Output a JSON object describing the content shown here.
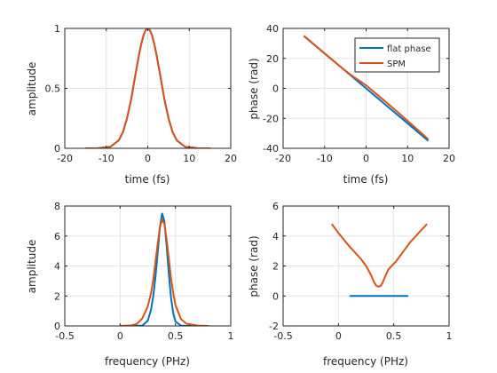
{
  "figure": {
    "colors": {
      "flat": "#0072BD",
      "spm": "#D95319",
      "grid": "#e3e3e3",
      "axis": "#262626"
    }
  },
  "chart_data": [
    {
      "type": "line",
      "xlabel": "time (fs)",
      "ylabel": "amplitude",
      "xlim": [
        -20,
        20
      ],
      "ylim": [
        0,
        1
      ],
      "xticks": [
        "-20",
        "-10",
        "0",
        "10",
        "20"
      ],
      "yticks": [
        "0",
        "0.5",
        "1"
      ],
      "grid": true,
      "series": [
        {
          "color": "#0072BD",
          "x": [
            -15,
            -12,
            -9,
            -7,
            -6,
            -5,
            -4,
            -3,
            -2,
            -1.5,
            -1,
            -0.5,
            0,
            0.5,
            1,
            1.5,
            2,
            3,
            4,
            5,
            6,
            7,
            9,
            12,
            15
          ],
          "values": [
            0.0,
            0.001,
            0.013,
            0.066,
            0.134,
            0.25,
            0.41,
            0.61,
            0.8,
            0.88,
            0.945,
            0.986,
            1.0,
            0.986,
            0.945,
            0.88,
            0.8,
            0.61,
            0.41,
            0.25,
            0.134,
            0.066,
            0.013,
            0.001,
            0.0
          ]
        },
        {
          "color": "#D95319",
          "x": [
            -15,
            -12,
            -9,
            -7,
            -6,
            -5,
            -4,
            -3,
            -2,
            -1.5,
            -1,
            -0.5,
            0,
            0.5,
            1,
            1.5,
            2,
            3,
            4,
            5,
            6,
            7,
            9,
            12,
            15
          ],
          "values": [
            0.0,
            0.001,
            0.013,
            0.066,
            0.134,
            0.25,
            0.41,
            0.61,
            0.8,
            0.88,
            0.945,
            0.986,
            1.0,
            0.986,
            0.945,
            0.88,
            0.8,
            0.61,
            0.41,
            0.25,
            0.134,
            0.066,
            0.013,
            0.001,
            0.0
          ]
        }
      ]
    },
    {
      "type": "line",
      "xlabel": "time (fs)",
      "ylabel": "phase (rad)",
      "xlim": [
        -20,
        20
      ],
      "ylim": [
        -40,
        40
      ],
      "xticks": [
        "-20",
        "-10",
        "0",
        "10",
        "20"
      ],
      "yticks": [
        "-40",
        "-20",
        "0",
        "20",
        "40"
      ],
      "grid": true,
      "legend": {
        "position": "top-right",
        "entries": [
          "flat phase",
          "SPM"
        ]
      },
      "series": [
        {
          "name": "flat phase",
          "color": "#0072BD",
          "x": [
            -15,
            -10,
            -5,
            0,
            5,
            10,
            15
          ],
          "values": [
            35,
            23.3,
            11.7,
            0,
            -11.7,
            -23.3,
            -35
          ]
        },
        {
          "name": "SPM",
          "color": "#D95319",
          "x": [
            -15,
            -10,
            -5,
            -3,
            -2,
            -1,
            0,
            1,
            2,
            3,
            5,
            10,
            15
          ],
          "values": [
            35,
            23.3,
            11.8,
            7.6,
            5.8,
            4.0,
            2.0,
            -0.3,
            -2.7,
            -5.0,
            -9.6,
            -21.6,
            -34
          ]
        }
      ]
    },
    {
      "type": "line",
      "xlabel": "frequency (PHz)",
      "ylabel": "amplitude",
      "xlim": [
        -0.5,
        1
      ],
      "ylim": [
        0,
        8
      ],
      "xticks": [
        "-0.5",
        "0",
        "0.5",
        "1"
      ],
      "yticks": [
        "0",
        "2",
        "4",
        "6",
        "8"
      ],
      "grid": true,
      "series": [
        {
          "color": "#0072BD",
          "x": [
            0,
            0.2,
            0.25,
            0.28,
            0.3,
            0.32,
            0.34,
            0.36,
            0.38,
            0.4,
            0.42,
            0.44,
            0.46,
            0.48,
            0.5,
            0.55,
            0.6,
            0.8
          ],
          "values": [
            0,
            0.02,
            0.35,
            1.1,
            2.0,
            3.3,
            4.9,
            6.6,
            7.5,
            7.0,
            5.4,
            3.5,
            1.9,
            0.85,
            0.3,
            0.02,
            0,
            0
          ]
        },
        {
          "color": "#D95319",
          "x": [
            0,
            0.1,
            0.15,
            0.2,
            0.25,
            0.28,
            0.3,
            0.32,
            0.34,
            0.36,
            0.38,
            0.4,
            0.42,
            0.44,
            0.46,
            0.48,
            0.5,
            0.55,
            0.6,
            0.7,
            0.8
          ],
          "values": [
            0,
            0.03,
            0.13,
            0.5,
            1.3,
            2.2,
            3.1,
            4.3,
            5.5,
            6.6,
            7.1,
            6.8,
            5.8,
            4.5,
            3.2,
            2.2,
            1.4,
            0.45,
            0.15,
            0.02,
            0
          ]
        }
      ]
    },
    {
      "type": "line",
      "xlabel": "frequency (PHz)",
      "ylabel": "phase (rad)",
      "xlim": [
        -0.5,
        1
      ],
      "ylim": [
        -2,
        6
      ],
      "xticks": [
        "-0.5",
        "0",
        "0.5",
        "1"
      ],
      "yticks": [
        "-2",
        "0",
        "2",
        "4",
        "6"
      ],
      "grid": true,
      "series": [
        {
          "color": "#0072BD",
          "x": [
            0.1,
            0.63
          ],
          "values": [
            0,
            0
          ]
        },
        {
          "color": "#D95319",
          "x": [
            -0.06,
            0.0,
            0.05,
            0.1,
            0.15,
            0.2,
            0.25,
            0.28,
            0.3,
            0.32,
            0.34,
            0.36,
            0.38,
            0.4,
            0.42,
            0.45,
            0.48,
            0.52,
            0.55,
            0.6,
            0.65,
            0.7,
            0.75,
            0.8
          ],
          "values": [
            4.8,
            4.2,
            3.75,
            3.3,
            2.9,
            2.5,
            2.0,
            1.6,
            1.3,
            0.95,
            0.7,
            0.62,
            0.65,
            0.9,
            1.25,
            1.75,
            2.0,
            2.3,
            2.6,
            3.1,
            3.6,
            4.0,
            4.4,
            4.8
          ]
        }
      ]
    }
  ]
}
